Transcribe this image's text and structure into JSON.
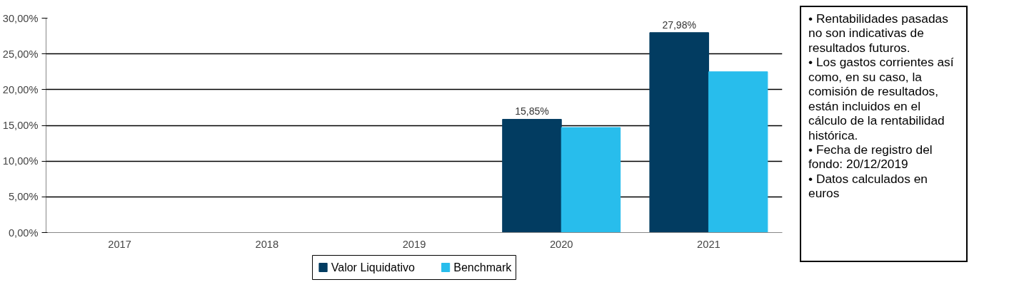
{
  "chart_data": {
    "type": "bar",
    "categories": [
      "2017",
      "2018",
      "2019",
      "2020",
      "2021"
    ],
    "series": [
      {
        "name": "Valor Liquidativo",
        "color": "#023c61",
        "values": [
          null,
          null,
          null,
          15.85,
          27.98
        ],
        "value_labels": [
          null,
          null,
          null,
          "15,85%",
          "27,98%"
        ]
      },
      {
        "name": "Benchmark",
        "color": "#28bdec",
        "values": [
          null,
          null,
          null,
          14.7,
          22.5
        ]
      }
    ],
    "ylim": [
      0,
      30
    ],
    "yticks": [
      {
        "value": 0,
        "label": "0,00%"
      },
      {
        "value": 5,
        "label": "5,00%"
      },
      {
        "value": 10,
        "label": "10,00%"
      },
      {
        "value": 15,
        "label": "15,00%"
      },
      {
        "value": 20,
        "label": "20,00%"
      },
      {
        "value": 25,
        "label": "25,00%"
      },
      {
        "value": 30,
        "label": "30,00%"
      }
    ],
    "grid": "y",
    "legend": "bottom",
    "annotations": [
      "• Rentabilidades pasadas no son indicativas de resultados futuros.",
      "• Los gastos corrientes así como, en su caso, la comisión de resultados, están incluidos en el cálculo de la rentabilidad histórica.",
      "• Fecha de registro del fondo: 20/12/2019",
      "• Datos calculados en euros"
    ]
  }
}
